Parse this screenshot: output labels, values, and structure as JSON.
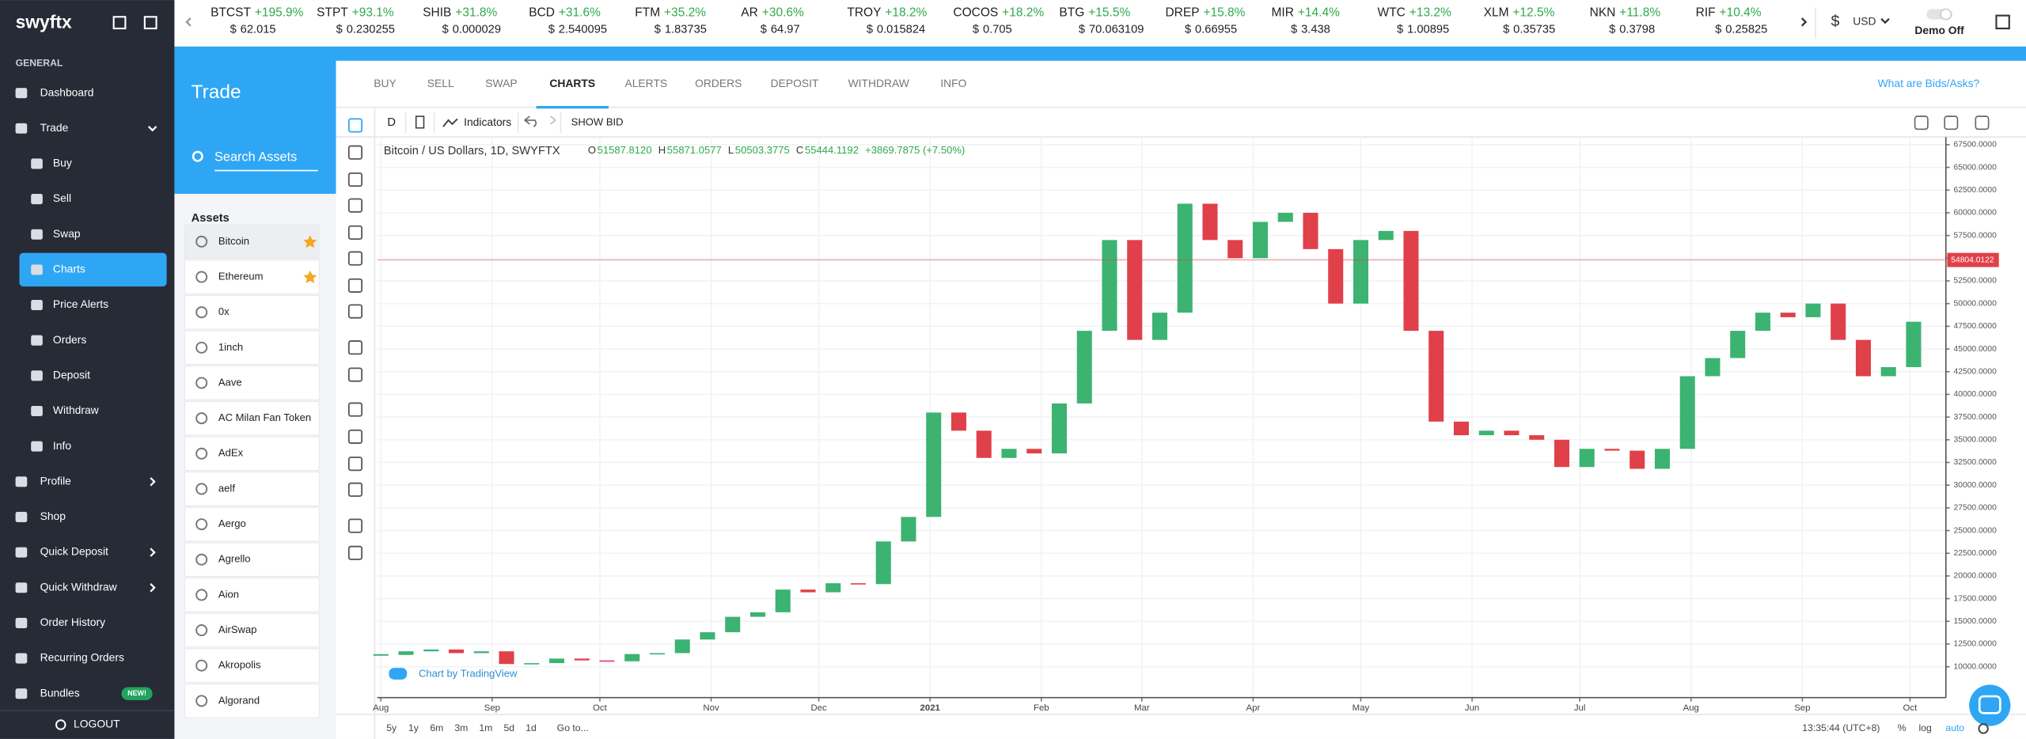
{
  "sidebar": {
    "logo": "swyftx",
    "section": "GENERAL",
    "items": [
      {
        "label": "Dashboard"
      },
      {
        "label": "Trade",
        "chevron": "down"
      },
      {
        "label": "Buy",
        "sub": true
      },
      {
        "label": "Sell",
        "sub": true
      },
      {
        "label": "Swap",
        "sub": true
      },
      {
        "label": "Charts",
        "sub": true,
        "active": true
      },
      {
        "label": "Price Alerts",
        "sub": true
      },
      {
        "label": "Orders",
        "sub": true
      },
      {
        "label": "Deposit",
        "sub": true
      },
      {
        "label": "Withdraw",
        "sub": true
      },
      {
        "label": "Info",
        "sub": true
      },
      {
        "label": "Profile",
        "chevron": "right"
      },
      {
        "label": "Shop"
      },
      {
        "label": "Quick Deposit",
        "chevron": "right"
      },
      {
        "label": "Quick Withdraw",
        "chevron": "right"
      },
      {
        "label": "Order History"
      },
      {
        "label": "Recurring Orders"
      },
      {
        "label": "Bundles",
        "badge": "NEW!"
      }
    ],
    "logout": "LOGOUT"
  },
  "ticker": {
    "currency_symbol": "$",
    "items": [
      {
        "symbol": "BTCST",
        "change": "+195.9%",
        "price": "62.015"
      },
      {
        "symbol": "STPT",
        "change": "+93.1%",
        "price": "0.230255"
      },
      {
        "symbol": "SHIB",
        "change": "+31.8%",
        "price": "0.000029"
      },
      {
        "symbol": "BCD",
        "change": "+31.6%",
        "price": "2.540095"
      },
      {
        "symbol": "FTM",
        "change": "+35.2%",
        "price": "1.83735"
      },
      {
        "symbol": "AR",
        "change": "+30.6%",
        "price": "64.97"
      },
      {
        "symbol": "TROY",
        "change": "+18.2%",
        "price": "0.015824"
      },
      {
        "symbol": "COCOS",
        "change": "+18.2%",
        "price": "0.705"
      },
      {
        "symbol": "BTG",
        "change": "+15.5%",
        "price": "70.063109"
      },
      {
        "symbol": "DREP",
        "change": "+15.8%",
        "price": "0.66955"
      },
      {
        "symbol": "MIR",
        "change": "+14.4%",
        "price": "3.438"
      },
      {
        "symbol": "WTC",
        "change": "+13.2%",
        "price": "1.00895"
      },
      {
        "symbol": "XLM",
        "change": "+12.5%",
        "price": "0.35735"
      },
      {
        "symbol": "NKN",
        "change": "+11.8%",
        "price": "0.3798"
      },
      {
        "symbol": "RIF",
        "change": "+10.4%",
        "price": "0.25825"
      }
    ],
    "currency": "USD",
    "demo": "Demo Off"
  },
  "trade": {
    "title": "Trade",
    "search": "Search Assets",
    "assets_heading": "Assets",
    "assets": [
      {
        "name": "Bitcoin",
        "favorite": true
      },
      {
        "name": "Ethereum",
        "favorite": true
      },
      {
        "name": "0x"
      },
      {
        "name": "1inch"
      },
      {
        "name": "Aave"
      },
      {
        "name": "AC Milan Fan Token"
      },
      {
        "name": "AdEx"
      },
      {
        "name": "aelf"
      },
      {
        "name": "Aergo"
      },
      {
        "name": "Agrello"
      },
      {
        "name": "Aion"
      },
      {
        "name": "AirSwap"
      },
      {
        "name": "Akropolis"
      },
      {
        "name": "Algorand"
      }
    ]
  },
  "tabs": {
    "items": [
      "BUY",
      "SELL",
      "SWAP",
      "CHARTS",
      "ALERTS",
      "ORDERS",
      "DEPOSIT",
      "WITHDRAW",
      "INFO"
    ],
    "active": "CHARTS",
    "help": "What are Bids/Asks?"
  },
  "chart": {
    "type": "candlestick",
    "toolbar": {
      "interval": "D",
      "indicators": "Indicators",
      "show_bid": "SHOW BID"
    },
    "legend": {
      "title": "Bitcoin / US Dollars, 1D, SWYFTX",
      "ohlc": [
        {
          "key": "O",
          "value": "51587.8120"
        },
        {
          "key": "H",
          "value": "55871.0577"
        },
        {
          "key": "L",
          "value": "50503.3775"
        },
        {
          "key": "C",
          "value": "55444.1192"
        }
      ],
      "change": "+3869.7875 (+7.50%)"
    },
    "last_price": 54804.0122,
    "xlim": [
      -1,
      436
    ],
    "ylim": [
      6600,
      68350
    ],
    "xticks": [
      {
        "value": 0,
        "label": "Aug"
      },
      {
        "value": 31,
        "label": "Sep"
      },
      {
        "value": 61,
        "label": "Oct"
      },
      {
        "value": 92,
        "label": "Nov"
      },
      {
        "value": 122,
        "label": "Dec"
      },
      {
        "value": 153,
        "label": "2021"
      },
      {
        "value": 184,
        "label": "Feb"
      },
      {
        "value": 212,
        "label": "Mar"
      },
      {
        "value": 243,
        "label": "Apr"
      },
      {
        "value": 273,
        "label": "May"
      },
      {
        "value": 304,
        "label": "Jun"
      },
      {
        "value": 334,
        "label": "Jul"
      },
      {
        "value": 365,
        "label": "Aug"
      },
      {
        "value": 396,
        "label": "Sep"
      },
      {
        "value": 426,
        "label": "Oct"
      }
    ],
    "yticks": [
      {
        "value": 10000,
        "label": "10000.0000"
      },
      {
        "value": 12500,
        "label": "12500.0000"
      },
      {
        "value": 15000,
        "label": "15000.0000"
      },
      {
        "value": 17500,
        "label": "17500.0000"
      },
      {
        "value": 20000,
        "label": "20000.0000"
      },
      {
        "value": 22500,
        "label": "22500.0000"
      },
      {
        "value": 25000,
        "label": "25000.0000"
      },
      {
        "value": 27500,
        "label": "27500.0000"
      },
      {
        "value": 30000,
        "label": "30000.0000"
      },
      {
        "value": 32500,
        "label": "32500.0000"
      },
      {
        "value": 35000,
        "label": "35000.0000"
      },
      {
        "value": 37500,
        "label": "37500.0000"
      },
      {
        "value": 40000,
        "label": "40000.0000"
      },
      {
        "value": 42500,
        "label": "42500.0000"
      },
      {
        "value": 45000,
        "label": "45000.0000"
      },
      {
        "value": 47500,
        "label": "47500.0000"
      },
      {
        "value": 50000,
        "label": "50000.0000"
      },
      {
        "value": 52500,
        "label": "52500.0000"
      },
      {
        "value": 55000,
        "label": "55000.0000"
      },
      {
        "value": 57500,
        "label": "57500.0000"
      },
      {
        "value": 60000,
        "label": "60000.0000"
      },
      {
        "value": 62500,
        "label": "62500.0000"
      },
      {
        "value": 65000,
        "label": "65000.0000"
      },
      {
        "value": 67500,
        "label": "67500.0000"
      }
    ],
    "x": [
      0,
      7,
      14,
      21,
      28,
      35,
      42,
      49,
      56,
      63,
      70,
      77,
      84,
      91,
      98,
      105,
      112,
      119,
      126,
      133,
      140,
      147,
      154,
      161,
      168,
      175,
      182,
      189,
      196,
      203,
      210,
      217,
      224,
      231,
      238,
      245,
      252,
      259,
      266,
      273,
      280,
      287,
      294,
      301,
      308,
      315,
      322,
      329,
      336,
      343,
      350,
      357,
      364,
      371,
      378,
      385,
      392,
      399,
      406,
      413,
      420,
      427
    ],
    "close": [
      11300,
      11700,
      11900,
      11500,
      11700,
      10300,
      10400,
      10900,
      10700,
      10600,
      11400,
      11500,
      13000,
      13800,
      15500,
      16000,
      18500,
      18200,
      19200,
      19100,
      23800,
      26500,
      38000,
      36000,
      33000,
      34000,
      33500,
      39000,
      47000,
      57000,
      46000,
      49000,
      61000,
      57000,
      55000,
      59000,
      60000,
      56000,
      50000,
      57000,
      58000,
      47000,
      37000,
      35500,
      36000,
      35500,
      35000,
      32000,
      34000,
      33800,
      31800,
      34000,
      42000,
      44000,
      47000,
      49000,
      48500,
      50000,
      46000,
      42000,
      43000,
      48000
    ],
    "up_color": "#3cb371",
    "down_color": "#e0404a",
    "attribution": "Chart by TradingView",
    "ranges": [
      "5y",
      "1y",
      "6m",
      "3m",
      "1m",
      "5d",
      "1d"
    ],
    "goto": "Go to...",
    "time": "13:35:44 (UTC+8)",
    "options": [
      "%",
      "log",
      "auto"
    ]
  }
}
